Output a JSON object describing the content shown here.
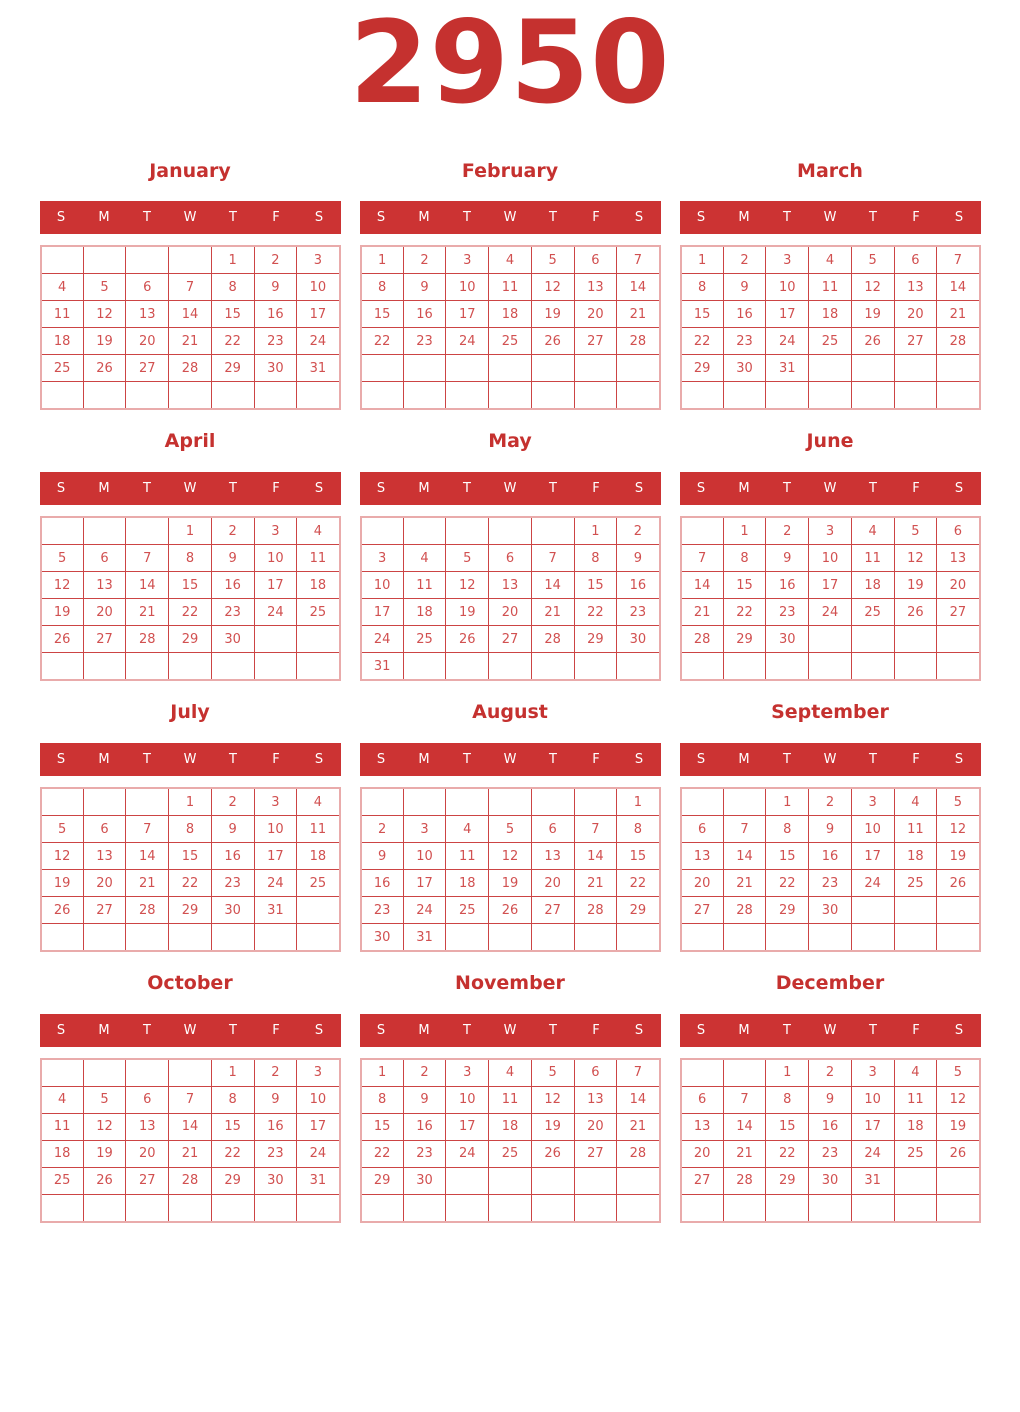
{
  "page": {
    "year": "2950"
  },
  "weekdays": [
    "S",
    "M",
    "T",
    "W",
    "T",
    "F",
    "S"
  ],
  "colors": {
    "accent_red": "#cc3333",
    "title_red": "#c5312f",
    "day_red": "#d15050",
    "inner_border": "#cc4444",
    "outer_border": "#e9abab",
    "header_text": "#ffffff"
  },
  "months": [
    {
      "name": "January",
      "weeks": [
        [
          "",
          "",
          "",
          "",
          "1",
          "2",
          "3"
        ],
        [
          "4",
          "5",
          "6",
          "7",
          "8",
          "9",
          "10"
        ],
        [
          "11",
          "12",
          "13",
          "14",
          "15",
          "16",
          "17"
        ],
        [
          "18",
          "19",
          "20",
          "21",
          "22",
          "23",
          "24"
        ],
        [
          "25",
          "26",
          "27",
          "28",
          "29",
          "30",
          "31"
        ],
        [
          "",
          "",
          "",
          "",
          "",
          "",
          ""
        ]
      ]
    },
    {
      "name": "February",
      "weeks": [
        [
          "1",
          "2",
          "3",
          "4",
          "5",
          "6",
          "7"
        ],
        [
          "8",
          "9",
          "10",
          "11",
          "12",
          "13",
          "14"
        ],
        [
          "15",
          "16",
          "17",
          "18",
          "19",
          "20",
          "21"
        ],
        [
          "22",
          "23",
          "24",
          "25",
          "26",
          "27",
          "28"
        ],
        [
          "",
          "",
          "",
          "",
          "",
          "",
          ""
        ],
        [
          "",
          "",
          "",
          "",
          "",
          "",
          ""
        ]
      ]
    },
    {
      "name": "March",
      "weeks": [
        [
          "1",
          "2",
          "3",
          "4",
          "5",
          "6",
          "7"
        ],
        [
          "8",
          "9",
          "10",
          "11",
          "12",
          "13",
          "14"
        ],
        [
          "15",
          "16",
          "17",
          "18",
          "19",
          "20",
          "21"
        ],
        [
          "22",
          "23",
          "24",
          "25",
          "26",
          "27",
          "28"
        ],
        [
          "29",
          "30",
          "31",
          "",
          "",
          "",
          ""
        ],
        [
          "",
          "",
          "",
          "",
          "",
          "",
          ""
        ]
      ]
    },
    {
      "name": "April",
      "weeks": [
        [
          "",
          "",
          "",
          "1",
          "2",
          "3",
          "4"
        ],
        [
          "5",
          "6",
          "7",
          "8",
          "9",
          "10",
          "11"
        ],
        [
          "12",
          "13",
          "14",
          "15",
          "16",
          "17",
          "18"
        ],
        [
          "19",
          "20",
          "21",
          "22",
          "23",
          "24",
          "25"
        ],
        [
          "26",
          "27",
          "28",
          "29",
          "30",
          "",
          ""
        ],
        [
          "",
          "",
          "",
          "",
          "",
          "",
          ""
        ]
      ]
    },
    {
      "name": "May",
      "weeks": [
        [
          "",
          "",
          "",
          "",
          "",
          "1",
          "2"
        ],
        [
          "3",
          "4",
          "5",
          "6",
          "7",
          "8",
          "9"
        ],
        [
          "10",
          "11",
          "12",
          "13",
          "14",
          "15",
          "16"
        ],
        [
          "17",
          "18",
          "19",
          "20",
          "21",
          "22",
          "23"
        ],
        [
          "24",
          "25",
          "26",
          "27",
          "28",
          "29",
          "30"
        ],
        [
          "31",
          "",
          "",
          "",
          "",
          "",
          ""
        ]
      ]
    },
    {
      "name": "June",
      "weeks": [
        [
          "",
          "1",
          "2",
          "3",
          "4",
          "5",
          "6"
        ],
        [
          "7",
          "8",
          "9",
          "10",
          "11",
          "12",
          "13"
        ],
        [
          "14",
          "15",
          "16",
          "17",
          "18",
          "19",
          "20"
        ],
        [
          "21",
          "22",
          "23",
          "24",
          "25",
          "26",
          "27"
        ],
        [
          "28",
          "29",
          "30",
          "",
          "",
          "",
          ""
        ],
        [
          "",
          "",
          "",
          "",
          "",
          "",
          ""
        ]
      ]
    },
    {
      "name": "July",
      "weeks": [
        [
          "",
          "",
          "",
          "1",
          "2",
          "3",
          "4"
        ],
        [
          "5",
          "6",
          "7",
          "8",
          "9",
          "10",
          "11"
        ],
        [
          "12",
          "13",
          "14",
          "15",
          "16",
          "17",
          "18"
        ],
        [
          "19",
          "20",
          "21",
          "22",
          "23",
          "24",
          "25"
        ],
        [
          "26",
          "27",
          "28",
          "29",
          "30",
          "31",
          ""
        ],
        [
          "",
          "",
          "",
          "",
          "",
          "",
          ""
        ]
      ]
    },
    {
      "name": "August",
      "weeks": [
        [
          "",
          "",
          "",
          "",
          "",
          "",
          "1"
        ],
        [
          "2",
          "3",
          "4",
          "5",
          "6",
          "7",
          "8"
        ],
        [
          "9",
          "10",
          "11",
          "12",
          "13",
          "14",
          "15"
        ],
        [
          "16",
          "17",
          "18",
          "19",
          "20",
          "21",
          "22"
        ],
        [
          "23",
          "24",
          "25",
          "26",
          "27",
          "28",
          "29"
        ],
        [
          "30",
          "31",
          "",
          "",
          "",
          "",
          ""
        ]
      ]
    },
    {
      "name": "September",
      "weeks": [
        [
          "",
          "",
          "1",
          "2",
          "3",
          "4",
          "5"
        ],
        [
          "6",
          "7",
          "8",
          "9",
          "10",
          "11",
          "12"
        ],
        [
          "13",
          "14",
          "15",
          "16",
          "17",
          "18",
          "19"
        ],
        [
          "20",
          "21",
          "22",
          "23",
          "24",
          "25",
          "26"
        ],
        [
          "27",
          "28",
          "29",
          "30",
          "",
          "",
          ""
        ],
        [
          "",
          "",
          "",
          "",
          "",
          "",
          ""
        ]
      ]
    },
    {
      "name": "October",
      "weeks": [
        [
          "",
          "",
          "",
          "",
          "1",
          "2",
          "3"
        ],
        [
          "4",
          "5",
          "6",
          "7",
          "8",
          "9",
          "10"
        ],
        [
          "11",
          "12",
          "13",
          "14",
          "15",
          "16",
          "17"
        ],
        [
          "18",
          "19",
          "20",
          "21",
          "22",
          "23",
          "24"
        ],
        [
          "25",
          "26",
          "27",
          "28",
          "29",
          "30",
          "31"
        ],
        [
          "",
          "",
          "",
          "",
          "",
          "",
          ""
        ]
      ]
    },
    {
      "name": "November",
      "weeks": [
        [
          "1",
          "2",
          "3",
          "4",
          "5",
          "6",
          "7"
        ],
        [
          "8",
          "9",
          "10",
          "11",
          "12",
          "13",
          "14"
        ],
        [
          "15",
          "16",
          "17",
          "18",
          "19",
          "20",
          "21"
        ],
        [
          "22",
          "23",
          "24",
          "25",
          "26",
          "27",
          "28"
        ],
        [
          "29",
          "30",
          "",
          "",
          "",
          "",
          ""
        ],
        [
          "",
          "",
          "",
          "",
          "",
          "",
          ""
        ]
      ]
    },
    {
      "name": "December",
      "weeks": [
        [
          "",
          "",
          "1",
          "2",
          "3",
          "4",
          "5"
        ],
        [
          "6",
          "7",
          "8",
          "9",
          "10",
          "11",
          "12"
        ],
        [
          "13",
          "14",
          "15",
          "16",
          "17",
          "18",
          "19"
        ],
        [
          "20",
          "21",
          "22",
          "23",
          "24",
          "25",
          "26"
        ],
        [
          "27",
          "28",
          "29",
          "30",
          "31",
          "",
          ""
        ],
        [
          "",
          "",
          "",
          "",
          "",
          "",
          ""
        ]
      ]
    }
  ]
}
